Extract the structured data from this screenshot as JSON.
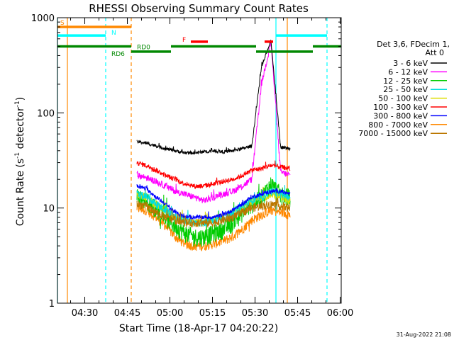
{
  "chart_data": {
    "type": "line",
    "title": "RHESSI Observing Summary Count Rates",
    "xlabel": "Start Time (18-Apr-17 04:20:22)",
    "ylabel_main": "Count Rate (s",
    "ylabel_sup1": "-1",
    "ylabel_mid": " detector",
    "ylabel_sup2": "-1",
    "ylabel_end": ")",
    "yscale": "log",
    "ylim": [
      1,
      1000
    ],
    "xlim_minutes": [
      0,
      100
    ],
    "x_ticks": [
      {
        "label": "04:30",
        "minute": 9.63
      },
      {
        "label": "04:45",
        "minute": 24.63
      },
      {
        "label": "05:00",
        "minute": 39.63
      },
      {
        "label": "05:15",
        "minute": 54.63
      },
      {
        "label": "05:30",
        "minute": 69.63
      },
      {
        "label": "05:45",
        "minute": 84.63
      },
      {
        "label": "06:00",
        "minute": 99.63
      }
    ],
    "y_ticks": [
      {
        "label": "1",
        "value": 1
      },
      {
        "label": "10",
        "value": 10
      },
      {
        "label": "100",
        "value": 100
      },
      {
        "label": "1000",
        "value": 1000
      }
    ],
    "legend": {
      "header1": "Det 3,6, FDecim 1,",
      "header2": "Att 0",
      "placement": "right"
    },
    "data_window_minutes": [
      28,
      82
    ],
    "series": [
      {
        "name": "3 - 6 keV",
        "color": "#000000",
        "values": [
          50,
          48,
          45,
          42,
          40,
          38,
          38,
          39,
          40,
          39,
          40,
          42,
          45,
          300,
          580,
          44,
          42
        ],
        "noise": 0.04
      },
      {
        "name": "6 - 12 keV",
        "color": "#ff00ff",
        "values": [
          22,
          21,
          19,
          17,
          15,
          14,
          13,
          12,
          13,
          14,
          15,
          17,
          20,
          200,
          550,
          24,
          22
        ],
        "noise": 0.08
      },
      {
        "name": "12 - 25 keV",
        "color": "#00cc00",
        "values": [
          13,
          12,
          10,
          8,
          6.5,
          5.5,
          5,
          5,
          5.5,
          6,
          7,
          9,
          11,
          13,
          18,
          14,
          13
        ],
        "noise": 0.22
      },
      {
        "name": "25 - 50 keV",
        "color": "#00dddd",
        "values": [
          14,
          13,
          11,
          9.5,
          8,
          7.5,
          7,
          7,
          7.5,
          8,
          9,
          10.5,
          12,
          13,
          15,
          14,
          13
        ],
        "noise": 0.1
      },
      {
        "name": "50 - 100 keV",
        "color": "#dddd00",
        "values": [
          14,
          13,
          11,
          9.5,
          8,
          7.5,
          7,
          7,
          7.5,
          8,
          9,
          10.5,
          12,
          13,
          14,
          13,
          12
        ],
        "noise": 0.1
      },
      {
        "name": "100 - 300 keV",
        "color": "#ff0000",
        "values": [
          30,
          28,
          25,
          22,
          20,
          18,
          17,
          17,
          18,
          19,
          20,
          22,
          25,
          26,
          28,
          27,
          26
        ],
        "noise": 0.06
      },
      {
        "name": "300 - 800 keV",
        "color": "#0000ff",
        "values": [
          17,
          16,
          13,
          11,
          9,
          8,
          8,
          8,
          8,
          8.5,
          9.5,
          11,
          13,
          14,
          15,
          15,
          14
        ],
        "noise": 0.05
      },
      {
        "name": "800 - 7000 keV",
        "color": "#ff8800",
        "values": [
          10,
          9.5,
          8,
          6.5,
          5,
          4.2,
          4,
          4,
          4.2,
          4.5,
          5,
          6,
          7.5,
          8.5,
          9.5,
          9,
          8.5
        ],
        "noise": 0.12
      },
      {
        "name": "7000 - 15000 keV",
        "color": "#bb7700",
        "values": [
          11,
          10.5,
          9,
          8,
          7.5,
          7,
          7,
          7,
          7,
          7.5,
          8,
          9,
          10,
          10.5,
          11,
          10.5,
          10
        ],
        "noise": 0.1
      }
    ],
    "flag_bars": [
      {
        "label": "S",
        "color": "#ff8800",
        "value": 800,
        "segments": [
          [
            0,
            26
          ]
        ]
      },
      {
        "label": "N",
        "color": "#00ffff",
        "value": 650,
        "segments": [
          [
            0,
            17
          ],
          [
            77,
            95
          ]
        ]
      },
      {
        "label": "RD0",
        "color": "#008800",
        "value": 500,
        "segments": [
          [
            0,
            26
          ],
          [
            40,
            70
          ],
          [
            90,
            100
          ]
        ]
      },
      {
        "label": "RD6",
        "color": "#008800",
        "value": 440,
        "segments": [
          [
            26,
            40
          ],
          [
            70,
            90
          ]
        ]
      },
      {
        "label": "F",
        "color": "#ff0000",
        "value": 560,
        "segments": [
          [
            47,
            53
          ],
          [
            73,
            76
          ]
        ]
      }
    ],
    "vlines": [
      {
        "minute": 0,
        "color": "#00ffff",
        "style": "solid"
      },
      {
        "minute": 3.5,
        "color": "#ff8800",
        "style": "solid"
      },
      {
        "minute": 17,
        "color": "#00ffff",
        "style": "dash"
      },
      {
        "minute": 26,
        "color": "#ff8800",
        "style": "dash"
      },
      {
        "minute": 77,
        "color": "#00ffff",
        "style": "solid"
      },
      {
        "minute": 81,
        "color": "#ff8800",
        "style": "solid"
      },
      {
        "minute": 95,
        "color": "#00ffff",
        "style": "dash"
      }
    ]
  },
  "footer": {
    "timestamp": "31-Aug-2022 21:08"
  }
}
